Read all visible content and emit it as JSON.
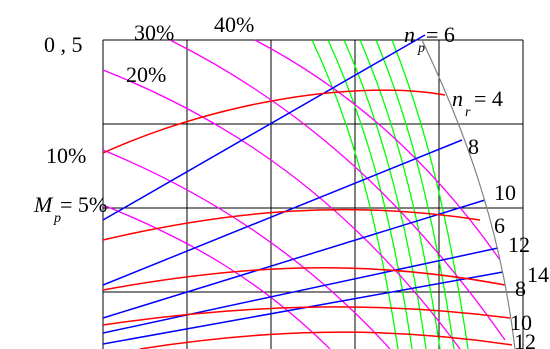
{
  "chart_data": {
    "type": "line",
    "grid": true,
    "ylim_label": "0 , 5",
    "colors": {
      "grid": "#000000",
      "boundary": "#808080",
      "Mp": "#ff00ff",
      "np": "#0000ff",
      "nr": "#ff0000",
      "extra": "#00ff00"
    },
    "labels": {
      "y_top": "0 , 5",
      "mp_prefix": "M",
      "mp_sub": "p",
      "mp_eq": " = 5%",
      "mp_10": "10%",
      "mp_20": "20%",
      "mp_30": "30%",
      "mp_40": "40%",
      "np_prefix": "n",
      "np_sub": "p",
      "np_eq": " = 6",
      "nr_prefix": "n",
      "nr_sub": "r",
      "nr_eq": " = 4",
      "b8": "8",
      "b10": "10",
      "b12": "12",
      "b14": "14",
      "r6": "6",
      "r8": "8",
      "r10": "10",
      "r12": "12"
    },
    "series": [
      {
        "family": "Mp",
        "label": "5%"
      },
      {
        "family": "Mp",
        "label": "10%"
      },
      {
        "family": "Mp",
        "label": "20%"
      },
      {
        "family": "Mp",
        "label": "30%"
      },
      {
        "family": "Mp",
        "label": "40%"
      },
      {
        "family": "np",
        "label": "6"
      },
      {
        "family": "np",
        "label": "8"
      },
      {
        "family": "np",
        "label": "10"
      },
      {
        "family": "np",
        "label": "12"
      },
      {
        "family": "np",
        "label": "14"
      },
      {
        "family": "nr",
        "label": "4"
      },
      {
        "family": "nr",
        "label": "6"
      },
      {
        "family": "nr",
        "label": "8"
      },
      {
        "family": "nr",
        "label": "10"
      },
      {
        "family": "nr",
        "label": "12"
      }
    ]
  }
}
